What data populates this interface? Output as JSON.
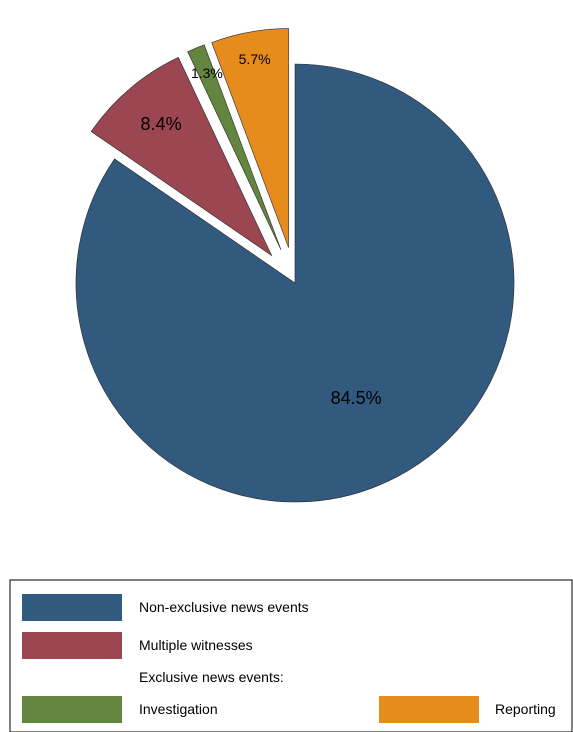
{
  "chart_data": {
    "type": "pie",
    "title": "",
    "slices": [
      {
        "name": "Non-exclusive news events",
        "value": 84.5,
        "label": "84.5%",
        "color": "#32597e",
        "exploded": false
      },
      {
        "name": "Multiple witnesses",
        "value": 8.4,
        "label": "8.4%",
        "color": "#9b4650",
        "exploded": true
      },
      {
        "name": "Investigation",
        "value": 1.3,
        "label": "1.3%",
        "color": "#64853f",
        "exploded": true
      },
      {
        "name": "Reporting",
        "value": 5.7,
        "label": "5.7%",
        "color": "#e58c1c",
        "exploded": true
      }
    ],
    "legend": {
      "placement": "bottom",
      "entries": [
        {
          "label": "Non-exclusive news events",
          "color": "#32597e"
        },
        {
          "label": "Multiple witnesses",
          "color": "#9b4650"
        },
        {
          "label": "Exclusive news events:",
          "color": ""
        },
        {
          "label": "Investigation",
          "color": "#64853f"
        },
        {
          "label": "Reporting",
          "color": "#e58c1c"
        }
      ]
    }
  }
}
